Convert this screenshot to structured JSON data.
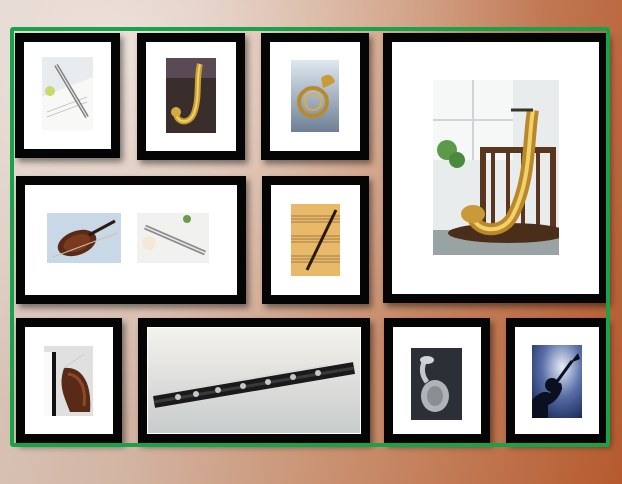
{
  "scene": {
    "selection_color": "#16a34a",
    "frame_color": "#050505",
    "mat_color": "#ffffff"
  },
  "frames": [
    {
      "id": "flute-sheet",
      "icon": "flute-icon"
    },
    {
      "id": "saxophone-small",
      "icon": "saxophone-icon"
    },
    {
      "id": "french-horn",
      "icon": "french-horn-icon"
    },
    {
      "id": "saxophone-chair",
      "icon": "saxophone-icon"
    },
    {
      "id": "violin-and-flute",
      "icon": "violin-icon"
    },
    {
      "id": "sheet-music-pen",
      "icon": "sheet-music-icon"
    },
    {
      "id": "piano-violin",
      "icon": "piano-icon"
    },
    {
      "id": "clarinet",
      "icon": "clarinet-icon"
    },
    {
      "id": "tuba",
      "icon": "tuba-icon"
    },
    {
      "id": "trumpet-player",
      "icon": "trumpet-icon"
    }
  ]
}
